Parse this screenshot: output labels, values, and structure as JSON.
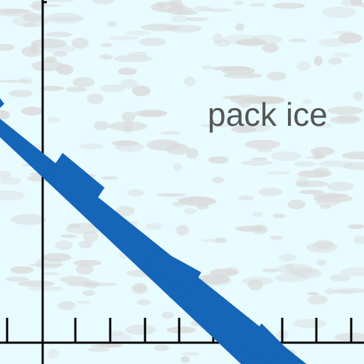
{
  "label": {
    "text": "pack ice"
  },
  "colors": {
    "background": "#e8fbff",
    "ice_texture": "#d9d9d9",
    "track": "#1565b8",
    "axis": "#000000",
    "label": "#555555"
  }
}
